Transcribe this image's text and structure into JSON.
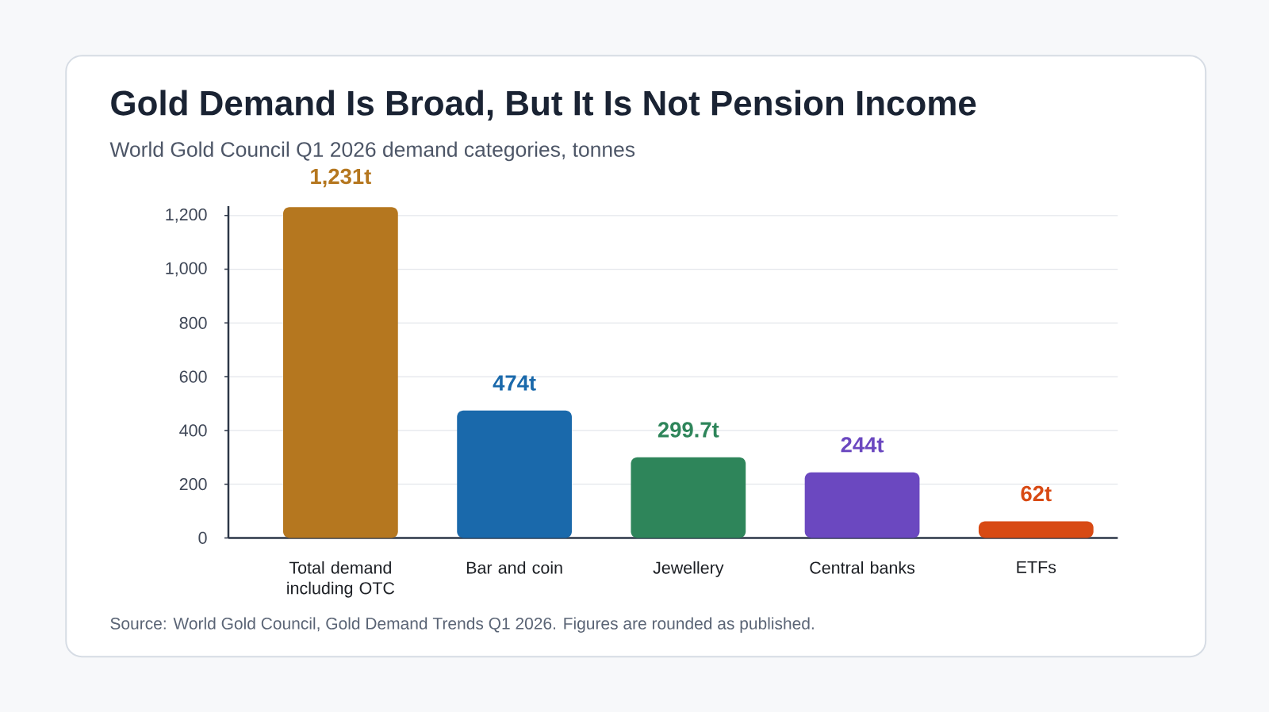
{
  "chart_data": {
    "type": "bar",
    "title": "Gold Demand Is Broad, But It Is Not Pension Income",
    "subtitle": "World Gold Council Q1 2026 demand categories, tonnes",
    "categories": [
      "Total demand including OTC",
      "Bar and coin",
      "Jewellery",
      "Central banks",
      "ETFs"
    ],
    "values": [
      1231,
      474,
      299.7,
      244,
      62
    ],
    "colors": [
      "#b5771f",
      "#1a69ab",
      "#2e855a",
      "#6b48c0",
      "#d84a14"
    ],
    "value_labels": [
      "1,231t",
      "474t",
      "299.7t",
      "244t",
      "62t"
    ],
    "ylim": [
      0,
      1235
    ],
    "yticks": [
      0,
      200,
      400,
      600,
      800,
      {
        "value": 1000,
        "label": "1,000"
      },
      {
        "value": 1200,
        "label": "1,200"
      }
    ],
    "grid": "y",
    "annotations": [
      "Source: World Gold Council, Gold Demand Trends Q1 2026. Figures are rounded as published."
    ]
  }
}
